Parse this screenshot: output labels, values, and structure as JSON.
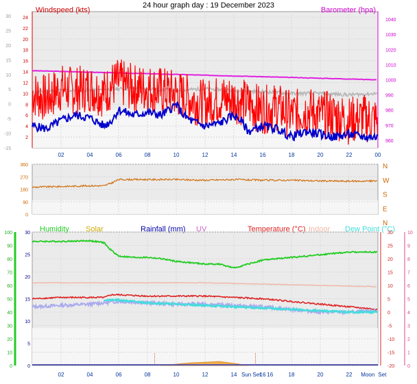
{
  "title": "24 hour graph day : 19 December 2023",
  "colors": {
    "wind": "#ff0000",
    "wind_avg": "#0000cc",
    "baro": "#e020e0",
    "gust_gray": "#b4b4b4",
    "dir": "#d07010",
    "humidity": "#22cc22",
    "solar": "#ccaa00",
    "rain": "#0000aa",
    "uv": "#cc66cc",
    "temp": "#dd2222",
    "indoor": "#f0b8a8",
    "dew": "#44dddd",
    "dew_light": "#aaaaee",
    "solar_fill": "#f0b050"
  },
  "x_tick_labels": [
    "02",
    "04",
    "06",
    "08",
    "10",
    "12",
    "14",
    "16",
    "18",
    "20",
    "22",
    "00"
  ],
  "bottom_x_labels": {
    "ticks": [
      "02",
      "04",
      "06",
      "08",
      "10",
      "12",
      "14",
      "16",
      "18",
      "20",
      "22"
    ],
    "sunset": "Sun Set",
    "sunset_hour": "16",
    "moon": "Moon",
    "moon_set": "Set"
  },
  "chart_data": [
    {
      "panel": "wind",
      "type": "line",
      "left_axis_label": "Windspeed (kts)",
      "right_axis_label": "Barometer (hpa)",
      "y_left_ticks": [
        2,
        4,
        6,
        8,
        10,
        12,
        14,
        16,
        18,
        20,
        22,
        24
      ],
      "y_left_neg_ticks": [
        -15,
        -10,
        -5,
        0,
        5,
        10,
        15,
        20,
        25,
        30
      ],
      "y_right_ticks": [
        960,
        970,
        980,
        990,
        1000,
        1010,
        1020,
        1030,
        1040
      ],
      "ylim_left": [
        0,
        25
      ],
      "ylim_right": [
        955,
        1045
      ],
      "x_range_hours": [
        0,
        24
      ],
      "series": [
        {
          "key": "wind",
          "points": [
            [
              0,
              10
            ],
            [
              1,
              9
            ],
            [
              2,
              11
            ],
            [
              3,
              10.5
            ],
            [
              4,
              11
            ],
            [
              5,
              10
            ],
            [
              5.5,
              11.5
            ],
            [
              6,
              12
            ],
            [
              7,
              11
            ],
            [
              8,
              11
            ],
            [
              9,
              10.5
            ],
            [
              10,
              10
            ],
            [
              11,
              9
            ],
            [
              12,
              8
            ],
            [
              13,
              9
            ],
            [
              14,
              9
            ],
            [
              15,
              8
            ],
            [
              16,
              7
            ],
            [
              17,
              7.5
            ],
            [
              18,
              6
            ],
            [
              19,
              7
            ],
            [
              20,
              6
            ],
            [
              21,
              6
            ],
            [
              22,
              5
            ],
            [
              23,
              5.5
            ],
            [
              24,
              5
            ]
          ]
        },
        {
          "key": "wind_avg",
          "points": [
            [
              0,
              4
            ],
            [
              1,
              3.5
            ],
            [
              2,
              5
            ],
            [
              3,
              6
            ],
            [
              4,
              5.5
            ],
            [
              5,
              4
            ],
            [
              5.5,
              5
            ],
            [
              6,
              7
            ],
            [
              7,
              6
            ],
            [
              8,
              6.5
            ],
            [
              9,
              6
            ],
            [
              10,
              8
            ],
            [
              10.5,
              6
            ],
            [
              11,
              5
            ],
            [
              12,
              4
            ],
            [
              13,
              4.5
            ],
            [
              14,
              6
            ],
            [
              14.5,
              5
            ],
            [
              15,
              3
            ],
            [
              16,
              4
            ],
            [
              17,
              3.5
            ],
            [
              18,
              2
            ],
            [
              19,
              3
            ],
            [
              20,
              2.5
            ],
            [
              21,
              2
            ],
            [
              22,
              2.5
            ],
            [
              23,
              2
            ],
            [
              24,
              2
            ]
          ]
        },
        {
          "key": "gust_gray",
          "points": [
            [
              0,
              992
            ],
            [
              2,
              993
            ],
            [
              4,
              993
            ],
            [
              6,
              994
            ],
            [
              8,
              994
            ],
            [
              10,
              993
            ],
            [
              12,
              994
            ],
            [
              14,
              993
            ],
            [
              16,
              992
            ],
            [
              18,
              991
            ],
            [
              20,
              991
            ],
            [
              22,
              990
            ],
            [
              24,
              991
            ]
          ]
        },
        {
          "key": "baro",
          "points": [
            [
              0,
              1006
            ],
            [
              2,
              1005.5
            ],
            [
              4,
              1005
            ],
            [
              6,
              1004.5
            ],
            [
              8,
              1004
            ],
            [
              10,
              1003.5
            ],
            [
              12,
              1003
            ],
            [
              14,
              1002.5
            ],
            [
              16,
              1002
            ],
            [
              18,
              1001.5
            ],
            [
              20,
              1001
            ],
            [
              22,
              1000.5
            ],
            [
              24,
              1000
            ]
          ]
        }
      ]
    },
    {
      "panel": "direction",
      "type": "line",
      "y_left_ticks": [
        0,
        90,
        180,
        270,
        360
      ],
      "y_right_labels": [
        "N",
        "W",
        "S",
        "E",
        "N"
      ],
      "ylim": [
        0,
        360
      ],
      "series": [
        {
          "key": "dir",
          "points": [
            [
              0,
              195
            ],
            [
              2,
              200
            ],
            [
              4,
              205
            ],
            [
              5,
              205
            ],
            [
              5.5,
              225
            ],
            [
              6,
              250
            ],
            [
              8,
              250
            ],
            [
              10,
              250
            ],
            [
              12,
              245
            ],
            [
              14,
              250
            ],
            [
              16,
              245
            ],
            [
              18,
              245
            ],
            [
              20,
              240
            ],
            [
              22,
              238
            ],
            [
              24,
              240
            ]
          ]
        }
      ]
    },
    {
      "panel": "temperature",
      "type": "line",
      "labels": [
        "Humidity",
        "Solar",
        "Rainfall (mm)",
        "UV",
        "Temperature (°C)",
        "Indoor",
        "Dew Point (°C)"
      ],
      "y_humidity_ticks": [
        0,
        10,
        20,
        30,
        40,
        50,
        60,
        70,
        80,
        90,
        100
      ],
      "y_rain_ticks": [
        0,
        5,
        10,
        15,
        20,
        25,
        30
      ],
      "y_temp_ticks": [
        -20,
        -15,
        -10,
        -5,
        0,
        5,
        10,
        15,
        20,
        25,
        30
      ],
      "y_uv_ticks": [
        0,
        1,
        2,
        3,
        4,
        5,
        6,
        7,
        8,
        9,
        10
      ],
      "ylim_temp": [
        -20,
        30
      ],
      "series": [
        {
          "key": "humidity",
          "axis": "humidity",
          "points": [
            [
              0,
              93
            ],
            [
              2,
              93
            ],
            [
              4,
              93.5
            ],
            [
              5,
              92
            ],
            [
              5.3,
              88
            ],
            [
              6,
              82
            ],
            [
              7,
              81
            ],
            [
              8,
              81
            ],
            [
              9,
              80
            ],
            [
              10,
              78
            ],
            [
              11,
              77
            ],
            [
              12,
              76
            ],
            [
              13,
              76
            ],
            [
              14,
              73
            ],
            [
              15,
              76
            ],
            [
              16,
              79
            ],
            [
              17,
              80
            ],
            [
              18,
              81
            ],
            [
              19,
              82
            ],
            [
              20,
              83
            ],
            [
              21,
              84
            ],
            [
              22,
              85
            ],
            [
              23,
              85
            ],
            [
              24,
              85
            ]
          ]
        },
        {
          "key": "indoor",
          "axis": "temp",
          "points": [
            [
              0,
              11
            ],
            [
              4,
              11
            ],
            [
              8,
              11
            ],
            [
              12,
              11
            ],
            [
              16,
              10.5
            ],
            [
              20,
              10
            ],
            [
              24,
              9.5
            ]
          ]
        },
        {
          "key": "temp",
          "axis": "temp",
          "points": [
            [
              0,
              5
            ],
            [
              2,
              5.5
            ],
            [
              4,
              5.5
            ],
            [
              5,
              5.5
            ],
            [
              5.5,
              6.5
            ],
            [
              6,
              6.5
            ],
            [
              8,
              6
            ],
            [
              10,
              6
            ],
            [
              12,
              6
            ],
            [
              14,
              5.5
            ],
            [
              16,
              5
            ],
            [
              18,
              4
            ],
            [
              20,
              3
            ],
            [
              22,
              2
            ],
            [
              24,
              1
            ]
          ]
        },
        {
          "key": "dew_light",
          "axis": "temp",
          "points": [
            [
              0,
              2
            ],
            [
              2,
              2.5
            ],
            [
              4,
              3
            ],
            [
              6,
              4
            ],
            [
              8,
              3.5
            ],
            [
              10,
              3
            ],
            [
              12,
              3
            ],
            [
              14,
              2.5
            ],
            [
              16,
              2
            ],
            [
              18,
              1
            ],
            [
              20,
              0
            ],
            [
              22,
              0
            ],
            [
              24,
              0.5
            ]
          ]
        },
        {
          "key": "dew",
          "axis": "temp",
          "points": [
            [
              5,
              4.5
            ],
            [
              6,
              4.5
            ],
            [
              8,
              3.5
            ],
            [
              10,
              3
            ],
            [
              12,
              2.5
            ],
            [
              14,
              2
            ],
            [
              16,
              1.5
            ],
            [
              18,
              1
            ],
            [
              20,
              0.5
            ],
            [
              22,
              0
            ],
            [
              24,
              0
            ]
          ]
        },
        {
          "key": "solar_fill",
          "axis": "temp",
          "points": [
            [
              9,
              -20
            ],
            [
              10,
              -19.5
            ],
            [
              11,
              -19
            ],
            [
              12,
              -18.8
            ],
            [
              13,
              -18.5
            ],
            [
              14,
              -19.2
            ],
            [
              15,
              -20
            ]
          ]
        }
      ]
    }
  ]
}
